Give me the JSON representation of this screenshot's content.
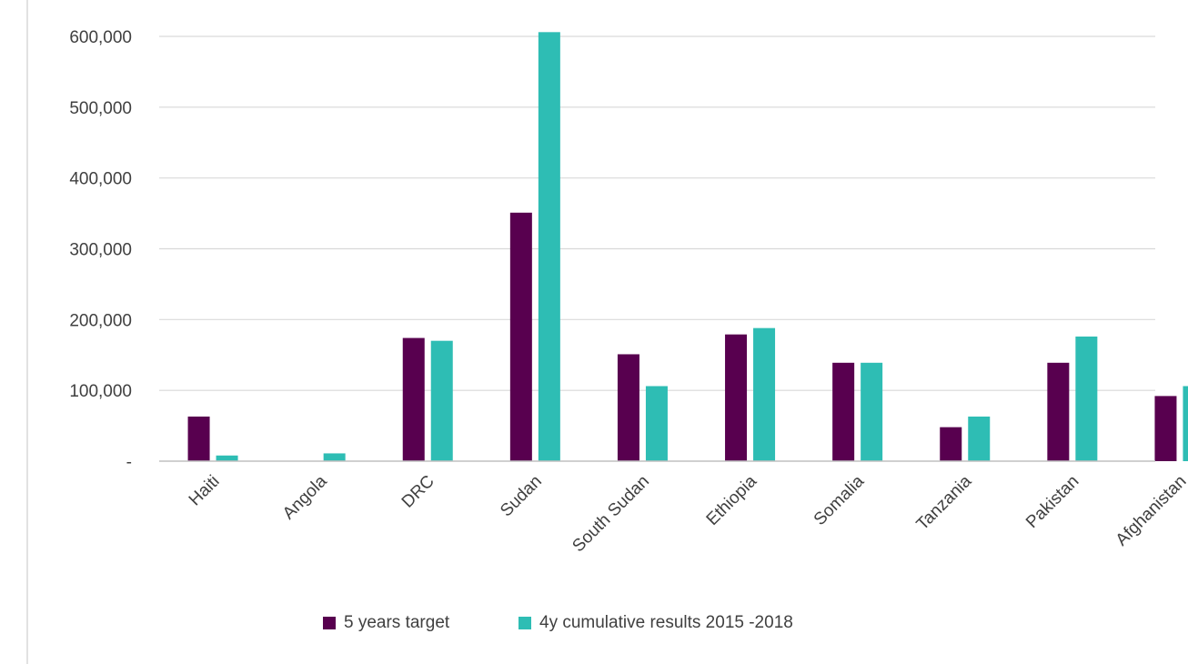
{
  "chart_data": {
    "type": "bar",
    "title": "",
    "xlabel": "",
    "ylabel": "",
    "categories": [
      "Haiti",
      "Angola",
      "DRC",
      "Sudan",
      "South Sudan",
      "Ethiopia",
      "Somalia",
      "Tanzania",
      "Pakistan",
      "Afghanistan"
    ],
    "series": [
      {
        "name": "5 years target",
        "color": "#58004f",
        "values": [
          63000,
          0,
          174000,
          351000,
          151000,
          179000,
          139000,
          48000,
          139000,
          92000
        ]
      },
      {
        "name": "4y cumulative results 2015 -2018",
        "color": "#2ebdb4",
        "values": [
          8000,
          11000,
          170000,
          606000,
          106000,
          188000,
          139000,
          63000,
          176000,
          106000
        ]
      }
    ],
    "ylim": [
      0,
      600000
    ],
    "yticks": [
      0,
      100000,
      200000,
      300000,
      400000,
      500000,
      600000
    ],
    "ytick_labels": [
      "-",
      "100,000",
      "200,000",
      "300,000",
      "400,000",
      "500,000",
      "600,000"
    ],
    "grid": true,
    "legend_position": "bottom"
  }
}
